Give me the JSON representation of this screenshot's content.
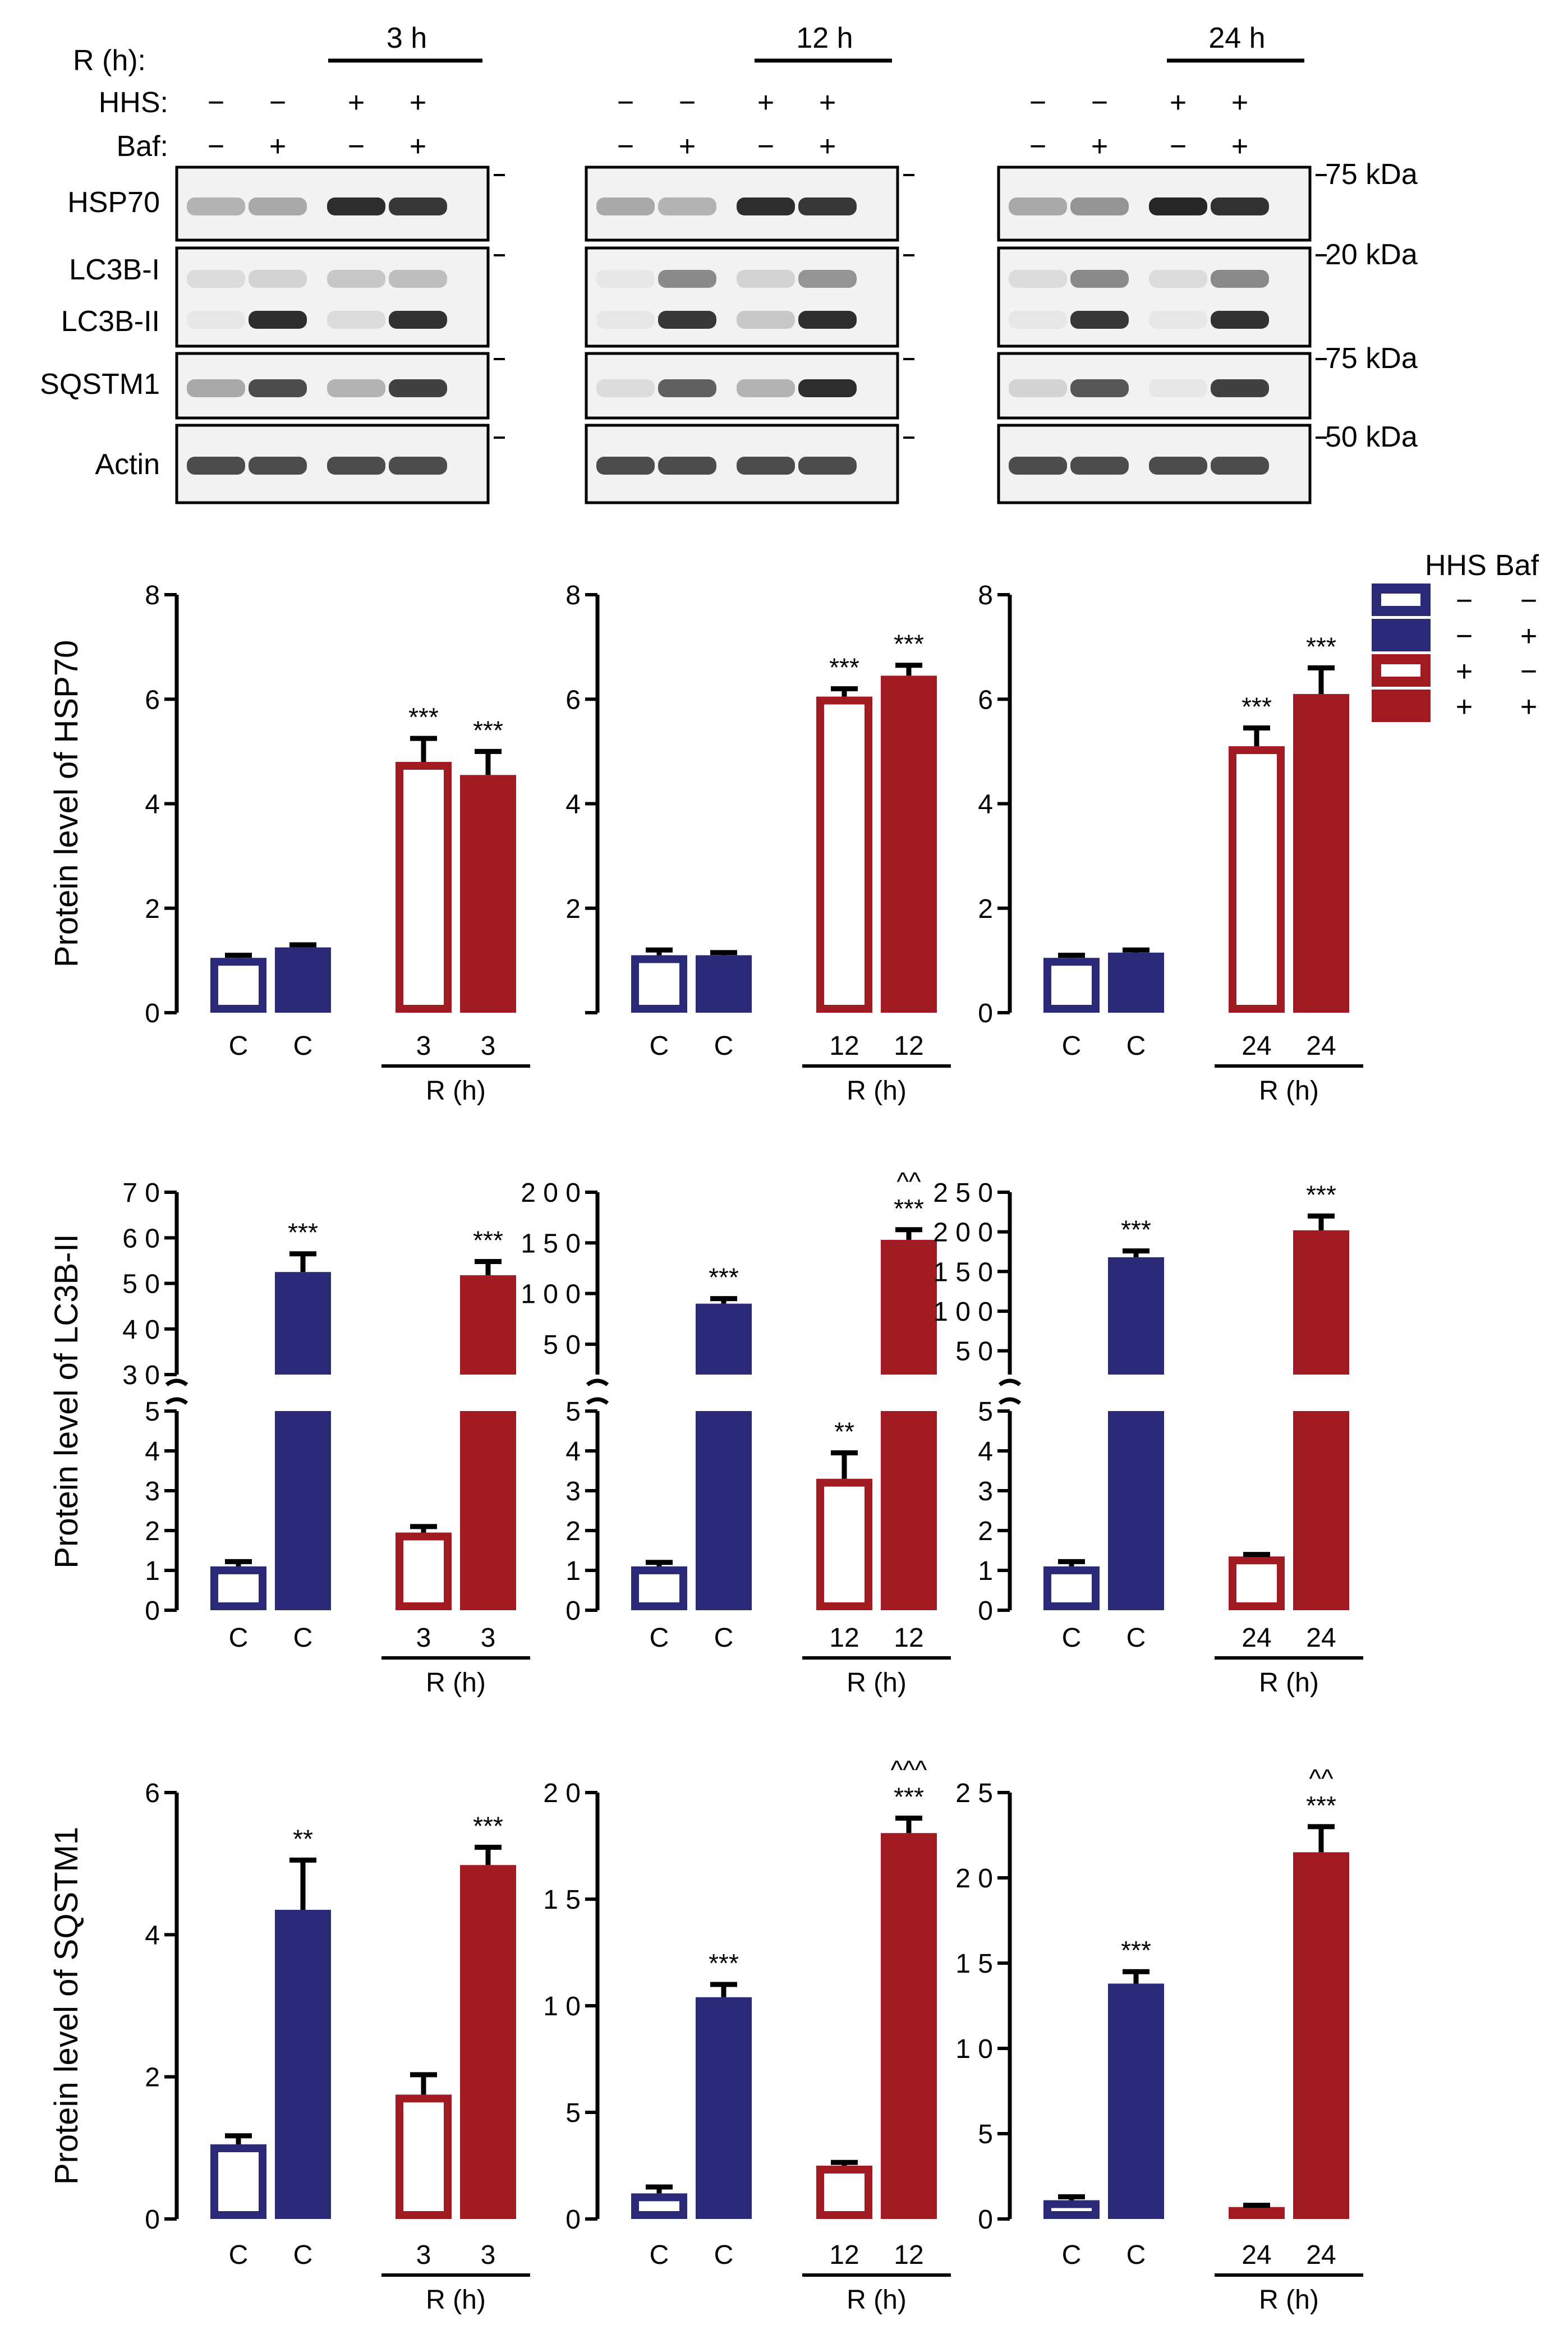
{
  "colors": {
    "blue": "#2b2a78",
    "red": "#a31b22",
    "black": "#000000",
    "band": "#222222"
  },
  "blot": {
    "row_labels": {
      "r": "R (h):",
      "hhs": "HHS:",
      "baf": "Baf:"
    },
    "panels": [
      {
        "time": "3 h",
        "hhs": [
          "−",
          "−",
          "+",
          "+"
        ],
        "baf": [
          "−",
          "+",
          "−",
          "+"
        ]
      },
      {
        "time": "12 h",
        "hhs": [
          "−",
          "−",
          "+",
          "+"
        ],
        "baf": [
          "−",
          "+",
          "−",
          "+"
        ]
      },
      {
        "time": "24 h",
        "hhs": [
          "−",
          "−",
          "+",
          "+"
        ],
        "baf": [
          "−",
          "+",
          "−",
          "+"
        ]
      }
    ],
    "proteins": [
      "HSP70",
      "LC3B-I",
      "LC3B-II",
      "SQSTM1",
      "Actin"
    ],
    "markers": [
      "75 kDa",
      "20 kDa",
      "75 kDa",
      "50 kDa"
    ],
    "bands": {
      "hsp70": [
        [
          0.3,
          0.35,
          0.95,
          0.9
        ],
        [
          0.35,
          0.3,
          0.95,
          0.9
        ],
        [
          0.35,
          0.45,
          0.98,
          0.92
        ]
      ],
      "lc3b1": [
        [
          0.1,
          0.15,
          0.2,
          0.25
        ],
        [
          0.05,
          0.5,
          0.15,
          0.45
        ],
        [
          0.1,
          0.5,
          0.1,
          0.5
        ]
      ],
      "lc3b2": [
        [
          0.05,
          0.95,
          0.1,
          0.92
        ],
        [
          0.05,
          0.9,
          0.2,
          0.95
        ],
        [
          0.05,
          0.9,
          0.05,
          0.92
        ]
      ],
      "sqstm1": [
        [
          0.35,
          0.8,
          0.3,
          0.85
        ],
        [
          0.1,
          0.7,
          0.3,
          0.95
        ],
        [
          0.15,
          0.75,
          0.05,
          0.85
        ]
      ],
      "actin": [
        [
          0.8,
          0.8,
          0.8,
          0.8
        ],
        [
          0.8,
          0.8,
          0.8,
          0.8
        ],
        [
          0.8,
          0.8,
          0.8,
          0.8
        ]
      ]
    }
  },
  "legend": {
    "headers": [
      "HHS",
      "Baf"
    ],
    "rows": [
      [
        "−",
        "−"
      ],
      [
        "−",
        "+"
      ],
      [
        "+",
        "−"
      ],
      [
        "+",
        "+"
      ]
    ]
  },
  "chart_data": [
    {
      "type": "bar",
      "ylabel": "Protein level of HSP70",
      "ylim": [
        0,
        8
      ],
      "yticks": [
        "0",
        "2",
        "4",
        "6",
        "8"
      ],
      "categories": [
        "C",
        "C",
        "3",
        "3"
      ],
      "xlabel": "R (h)",
      "values": [
        1.05,
        1.25,
        4.8,
        4.55
      ],
      "errors": [
        0.05,
        0.05,
        0.45,
        0.45
      ],
      "sig": [
        "",
        "",
        "***",
        "***"
      ]
    },
    {
      "type": "bar",
      "ylabel": "",
      "ylim": [
        0,
        8
      ],
      "yticks": [
        "",
        "2",
        "4",
        "6",
        "8"
      ],
      "categories": [
        "C",
        "C",
        "12",
        "12"
      ],
      "xlabel": "R (h)",
      "values": [
        1.1,
        1.1,
        6.05,
        6.45
      ],
      "errors": [
        0.1,
        0.05,
        0.15,
        0.2
      ],
      "sig": [
        "",
        "",
        "***",
        "***"
      ]
    },
    {
      "type": "bar",
      "ylabel": "",
      "ylim": [
        0,
        8
      ],
      "yticks": [
        "0",
        "2",
        "4",
        "6",
        "8"
      ],
      "categories": [
        "C",
        "C",
        "24",
        "24"
      ],
      "xlabel": "R (h)",
      "values": [
        1.05,
        1.15,
        5.1,
        6.1
      ],
      "errors": [
        0.05,
        0.05,
        0.35,
        0.5
      ],
      "sig": [
        "",
        "",
        "***",
        "***"
      ]
    },
    {
      "type": "bar",
      "broken": true,
      "ylabel": "Protein level of LC3B-II",
      "lower_ylim": [
        0,
        5
      ],
      "lower_ticks": [
        "0",
        "1",
        "2",
        "3",
        "4",
        "5"
      ],
      "upper_ylim": [
        30,
        70
      ],
      "upper_ticks": [
        "3 0",
        "4 0",
        "5 0",
        "6 0",
        "7 0"
      ],
      "categories": [
        "C",
        "C",
        "3",
        "3"
      ],
      "xlabel": "R (h)",
      "values": [
        1.1,
        52.5,
        1.95,
        51.8
      ],
      "errors": [
        0.12,
        4.0,
        0.15,
        3.0
      ],
      "sig": [
        "",
        "***",
        "",
        "***"
      ],
      "sig2": [
        "",
        "",
        "",
        ""
      ]
    },
    {
      "type": "bar",
      "broken": true,
      "ylabel": "",
      "lower_ylim": [
        0,
        5
      ],
      "lower_ticks": [
        "0",
        "1",
        "2",
        "3",
        "4",
        "5"
      ],
      "upper_ylim": [
        20,
        200
      ],
      "upper_ticks": [
        "5 0",
        "1 0 0",
        "1 5 0",
        "2 0 0"
      ],
      "categories": [
        "C",
        "C",
        "12",
        "12"
      ],
      "xlabel": "R (h)",
      "values": [
        1.1,
        90,
        3.3,
        153
      ],
      "errors": [
        0.1,
        5,
        0.65,
        10
      ],
      "sig": [
        "",
        "***",
        "**",
        "***"
      ],
      "sig2": [
        "",
        "",
        "",
        "^^"
      ]
    },
    {
      "type": "bar",
      "broken": true,
      "ylabel": "",
      "lower_ylim": [
        0,
        5
      ],
      "lower_ticks": [
        "0",
        "1",
        "2",
        "3",
        "4",
        "5"
      ],
      "upper_ylim": [
        20,
        250
      ],
      "upper_ticks": [
        "5 0",
        "1 0 0",
        "1 5 0",
        "2 0 0",
        "2 5 0"
      ],
      "categories": [
        "C",
        "C",
        "24",
        "24"
      ],
      "xlabel": "R (h)",
      "values": [
        1.1,
        168,
        1.35,
        202
      ],
      "errors": [
        0.12,
        8,
        0.05,
        18
      ],
      "sig": [
        "",
        "***",
        "",
        "***"
      ],
      "sig2": [
        "",
        "",
        "",
        ""
      ]
    },
    {
      "type": "bar",
      "ylabel": "Protein level of SQSTM1",
      "ylim": [
        0,
        6
      ],
      "yticks": [
        "0",
        "2",
        "4",
        "6"
      ],
      "categories": [
        "C",
        "C",
        "3",
        "3"
      ],
      "xlabel": "R (h)",
      "values": [
        1.05,
        4.35,
        1.75,
        4.98
      ],
      "errors": [
        0.12,
        0.7,
        0.28,
        0.25
      ],
      "sig": [
        "",
        "**",
        "",
        "***"
      ],
      "sig2": [
        "",
        "",
        "",
        ""
      ]
    },
    {
      "type": "bar",
      "ylabel": "",
      "ylim": [
        0,
        20
      ],
      "yticks": [
        "0",
        "5",
        "1 0",
        "1 5",
        "2 0"
      ],
      "categories": [
        "C",
        "C",
        "12",
        "12"
      ],
      "xlabel": "R (h)",
      "values": [
        1.2,
        10.4,
        2.5,
        18.1
      ],
      "errors": [
        0.3,
        0.6,
        0.15,
        0.7
      ],
      "sig": [
        "",
        "***",
        "",
        "***"
      ],
      "sig2": [
        "",
        "",
        "",
        "^^^"
      ]
    },
    {
      "type": "bar",
      "ylabel": "",
      "ylim": [
        0,
        25
      ],
      "yticks": [
        "0",
        "5",
        "1 0",
        "1 5",
        "2 0",
        "2 5"
      ],
      "categories": [
        "C",
        "C",
        "24",
        "24"
      ],
      "xlabel": "R (h)",
      "values": [
        1.1,
        13.8,
        0.7,
        21.5
      ],
      "errors": [
        0.2,
        0.7,
        0.1,
        1.5
      ],
      "sig": [
        "",
        "***",
        "",
        "***"
      ],
      "sig2": [
        "",
        "",
        "",
        "^^"
      ]
    }
  ]
}
